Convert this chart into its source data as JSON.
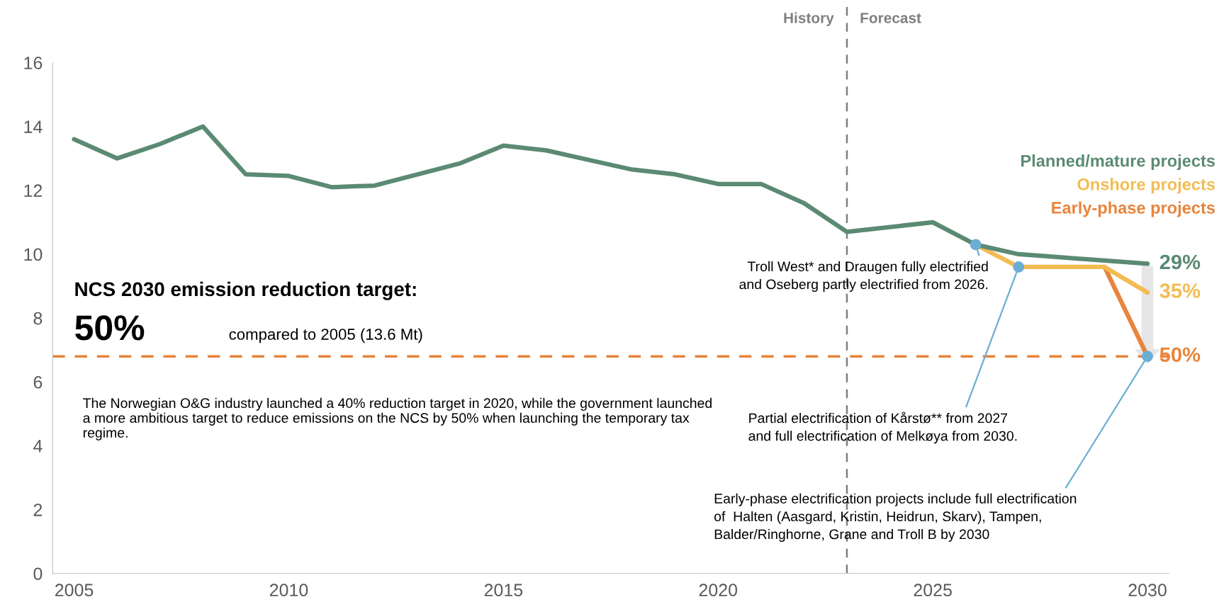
{
  "chart_data": {
    "type": "line",
    "x": [
      2005,
      2006,
      2007,
      2008,
      2009,
      2010,
      2011,
      2012,
      2013,
      2014,
      2015,
      2016,
      2017,
      2018,
      2019,
      2020,
      2021,
      2022,
      2023,
      2024,
      2025,
      2026,
      2027,
      2028,
      2029,
      2030
    ],
    "series": [
      {
        "name": "Planned/mature projects",
        "color": "#5b8a73",
        "values": [
          13.6,
          13.0,
          13.45,
          14.0,
          12.5,
          12.45,
          12.1,
          12.15,
          12.5,
          12.85,
          13.4,
          13.25,
          12.95,
          12.65,
          12.5,
          12.2,
          12.2,
          11.6,
          10.7,
          10.85,
          11.0,
          10.3,
          10.0,
          9.9,
          9.8,
          9.7
        ]
      },
      {
        "name": "Onshore projects",
        "color": "#f2bc52",
        "x": [
          2026,
          2027,
          2028,
          2029,
          2030
        ],
        "values": [
          10.3,
          9.6,
          9.6,
          9.6,
          8.8
        ]
      },
      {
        "name": "Early-phase projects",
        "color": "#e8843c",
        "x": [
          2029,
          2030
        ],
        "values": [
          9.6,
          6.8
        ]
      }
    ],
    "xlim": [
      2004.5,
      2030.5
    ],
    "xticks": [
      2005,
      2010,
      2015,
      2020,
      2025,
      2030
    ],
    "ylim": [
      0,
      16
    ],
    "yticks": [
      0,
      2,
      4,
      6,
      8,
      10,
      12,
      14,
      16
    ],
    "grid": false,
    "line_style": "solid",
    "ref_lines": [
      {
        "axis": "y",
        "value": 6.8,
        "color": "#e8843c",
        "line_style": "dashed"
      },
      {
        "axis": "x",
        "value": 2023,
        "label": "History",
        "color": "#7f7f7f",
        "line_style": "dashed"
      }
    ],
    "annotations": [
      "Forecast",
      "NCS 2030 emission reduction target:",
      "50%",
      "compared to 2005 (13.6 Mt)",
      "The Norwegian O&G industry launched a 40% reduction target in 2020, while the government launched a more ambitious target to reduce emissions on the NCS by 50% when launching the temporary tax regime.",
      {
        "text": "29%",
        "x": 2030,
        "y": 9.7
      },
      {
        "text": "35%",
        "x": 2030,
        "y": 8.8
      },
      {
        "text": "50%",
        "x": 2030,
        "y": 6.8
      },
      {
        "text": "Troll West* and Draugen fully electrified\nand Oseberg partly electrified from 2026.",
        "x": 2026,
        "y": 10.3
      },
      {
        "text": "Partial electrification of Kårstø** from 2027\nand full electrification of Melkøya from 2030.",
        "x": 2027,
        "y": 9.6
      },
      {
        "text": "Early-phase electrification projects include full electrification\nof  Halten (Aasgard, Kristin, Heidrun, Skarv), Tampen,\nBalder/Ringhorne, Grane and Troll B by 2030",
        "x": 2030,
        "y": 6.8
      }
    ]
  }
}
